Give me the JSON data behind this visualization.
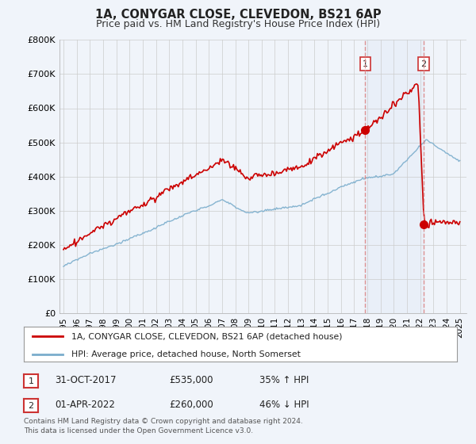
{
  "title": "1A, CONYGAR CLOSE, CLEVEDON, BS21 6AP",
  "subtitle": "Price paid vs. HM Land Registry's House Price Index (HPI)",
  "yticks": [
    0,
    100000,
    200000,
    300000,
    400000,
    500000,
    600000,
    700000,
    800000
  ],
  "ytick_labels": [
    "£0",
    "£100K",
    "£200K",
    "£300K",
    "£400K",
    "£500K",
    "£600K",
    "£700K",
    "£800K"
  ],
  "xlim_start": 1994.7,
  "xlim_end": 2025.5,
  "ylim_min": 0,
  "ylim_max": 800000,
  "marker1_x": 2017.83,
  "marker1_y": 535000,
  "marker2_x": 2022.25,
  "marker2_y": 260000,
  "legend_line1": "1A, CONYGAR CLOSE, CLEVEDON, BS21 6AP (detached house)",
  "legend_line2": "HPI: Average price, detached house, North Somerset",
  "line1_color": "#cc0000",
  "line2_color": "#7aadcc",
  "dashed_color": "#dd8888",
  "shade_color": "#dde8f5",
  "footnote1": "Contains HM Land Registry data © Crown copyright and database right 2024.",
  "footnote2": "This data is licensed under the Open Government Licence v3.0.",
  "table_row1": [
    "1",
    "31-OCT-2017",
    "£535,000",
    "35% ↑ HPI"
  ],
  "table_row2": [
    "2",
    "01-APR-2022",
    "£260,000",
    "46% ↓ HPI"
  ],
  "background_color": "#f0f4fa",
  "plot_bg_color": "#f0f4fa",
  "grid_color": "#cccccc",
  "title_fontsize": 10.5,
  "subtitle_fontsize": 9
}
